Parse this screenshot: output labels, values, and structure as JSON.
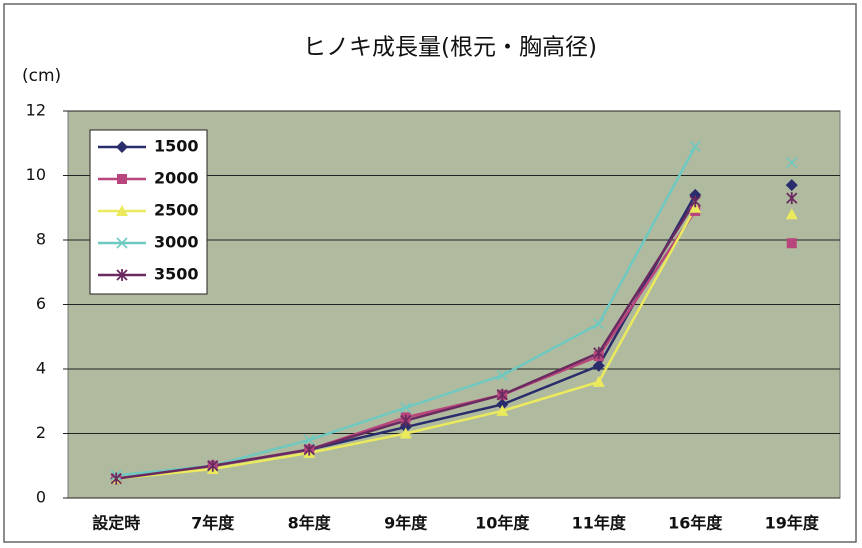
{
  "chart_data": {
    "type": "line",
    "title": "ヒノキ成長量(根元・胸高径)",
    "y_axis_label": "(cm)",
    "categories": [
      "設定時",
      "7年度",
      "8年度",
      "9年度",
      "10年度",
      "11年度",
      "16年度",
      "19年度"
    ],
    "line_breaks": [
      7
    ],
    "series": [
      {
        "name": "1500",
        "color": "#2a2d6b",
        "marker": "diamond",
        "values": [
          0.6,
          1.0,
          1.5,
          2.2,
          2.9,
          4.1,
          9.4,
          9.7
        ]
      },
      {
        "name": "2000",
        "color": "#b8457c",
        "marker": "square",
        "values": [
          0.6,
          1.0,
          1.5,
          2.5,
          3.2,
          4.4,
          8.9,
          7.9
        ]
      },
      {
        "name": "2500",
        "color": "#eaea5c",
        "marker": "triangle",
        "values": [
          0.6,
          0.9,
          1.4,
          2.0,
          2.7,
          3.6,
          9.0,
          8.8
        ]
      },
      {
        "name": "3000",
        "color": "#6ec9c0",
        "marker": "x",
        "values": [
          0.7,
          1.0,
          1.8,
          2.8,
          3.8,
          5.4,
          10.9,
          10.4
        ]
      },
      {
        "name": "3500",
        "color": "#6a2a60",
        "marker": "asterisk",
        "values": [
          0.6,
          1.0,
          1.5,
          2.4,
          3.2,
          4.5,
          9.2,
          9.3
        ]
      }
    ],
    "ylim": [
      0,
      12
    ],
    "yticks": [
      0,
      2,
      4,
      6,
      8,
      10,
      12
    ],
    "grid": true,
    "legend": "upper-left"
  }
}
